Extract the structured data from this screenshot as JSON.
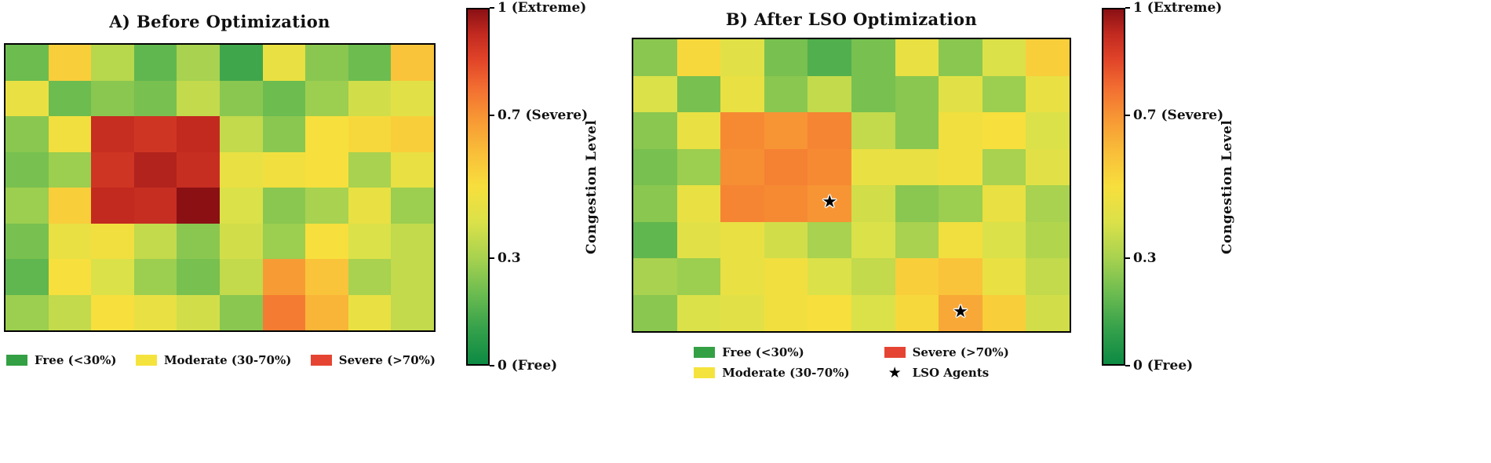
{
  "colorbar": {
    "label": "Congestion Level",
    "range": [
      0,
      1
    ],
    "ticks": [
      {
        "value": 1.0,
        "label": "1 (Extreme)"
      },
      {
        "value": 0.7,
        "label": "0.7 (Severe)"
      },
      {
        "value": 0.3,
        "label": "0.3"
      },
      {
        "value": 0.0,
        "label": "0 (Free)"
      }
    ],
    "gradient_stops": [
      [
        0.0,
        "#0c8a43"
      ],
      [
        0.1,
        "#35a14b"
      ],
      [
        0.2,
        "#6cbc50"
      ],
      [
        0.3,
        "#a8d24f"
      ],
      [
        0.4,
        "#dbe149"
      ],
      [
        0.5,
        "#f7df3d"
      ],
      [
        0.6,
        "#f9bd39"
      ],
      [
        0.7,
        "#f79434"
      ],
      [
        0.78,
        "#f26d31"
      ],
      [
        0.86,
        "#e04328"
      ],
      [
        0.93,
        "#c22a20"
      ],
      [
        1.0,
        "#8a1014"
      ]
    ]
  },
  "chart_data": [
    {
      "type": "heatmap",
      "title": "A) Before Optimization",
      "grid_rows": 8,
      "grid_cols": 10,
      "value_range": [
        0,
        1
      ],
      "values": [
        [
          0.2,
          0.55,
          0.33,
          0.18,
          0.3,
          0.12,
          0.45,
          0.25,
          0.2,
          0.58
        ],
        [
          0.45,
          0.2,
          0.25,
          0.22,
          0.35,
          0.25,
          0.2,
          0.28,
          0.38,
          0.42
        ],
        [
          0.25,
          0.48,
          0.92,
          0.9,
          0.93,
          0.35,
          0.25,
          0.5,
          0.52,
          0.55
        ],
        [
          0.22,
          0.28,
          0.9,
          0.95,
          0.92,
          0.45,
          0.48,
          0.5,
          0.3,
          0.45
        ],
        [
          0.28,
          0.55,
          0.93,
          0.92,
          1.0,
          0.4,
          0.25,
          0.3,
          0.45,
          0.28
        ],
        [
          0.22,
          0.45,
          0.48,
          0.35,
          0.25,
          0.38,
          0.28,
          0.5,
          0.4,
          0.35
        ],
        [
          0.18,
          0.5,
          0.4,
          0.28,
          0.22,
          0.35,
          0.68,
          0.58,
          0.3,
          0.35
        ],
        [
          0.28,
          0.35,
          0.5,
          0.45,
          0.38,
          0.25,
          0.75,
          0.62,
          0.45,
          0.35
        ]
      ],
      "legend_layout": "single-row",
      "legend": [
        {
          "label": "Free (<30%)",
          "marker": "patch",
          "color": "#33a043"
        },
        {
          "label": "Moderate (30-70%)",
          "marker": "patch",
          "color": "#f5e33d"
        },
        {
          "label": "Severe (>70%)",
          "marker": "patch",
          "color": "#e54432"
        }
      ]
    },
    {
      "type": "heatmap",
      "title": "B) After LSO Optimization",
      "grid_rows": 8,
      "grid_cols": 10,
      "value_range": [
        0,
        1
      ],
      "values": [
        [
          0.25,
          0.52,
          0.42,
          0.22,
          0.15,
          0.22,
          0.45,
          0.25,
          0.4,
          0.55
        ],
        [
          0.4,
          0.22,
          0.45,
          0.25,
          0.35,
          0.22,
          0.25,
          0.42,
          0.28,
          0.45
        ],
        [
          0.25,
          0.45,
          0.72,
          0.7,
          0.73,
          0.35,
          0.25,
          0.48,
          0.5,
          0.4
        ],
        [
          0.22,
          0.28,
          0.71,
          0.74,
          0.72,
          0.45,
          0.45,
          0.48,
          0.3,
          0.42
        ],
        [
          0.25,
          0.45,
          0.73,
          0.72,
          0.7,
          0.38,
          0.25,
          0.28,
          0.45,
          0.3
        ],
        [
          0.18,
          0.42,
          0.45,
          0.38,
          0.3,
          0.4,
          0.3,
          0.48,
          0.4,
          0.32
        ],
        [
          0.3,
          0.28,
          0.45,
          0.48,
          0.4,
          0.35,
          0.55,
          0.58,
          0.45,
          0.35
        ],
        [
          0.25,
          0.4,
          0.42,
          0.48,
          0.5,
          0.4,
          0.52,
          0.65,
          0.55,
          0.38
        ]
      ],
      "agents": [
        {
          "row": 4,
          "col": 4
        },
        {
          "row": 7,
          "col": 7
        }
      ],
      "legend_layout": "two-column",
      "legend": [
        {
          "label": "Free (<30%)",
          "marker": "patch",
          "color": "#33a043"
        },
        {
          "label": "Severe (>70%)",
          "marker": "patch",
          "color": "#e54432"
        },
        {
          "label": "Moderate (30-70%)",
          "marker": "patch",
          "color": "#f5e33d"
        },
        {
          "label": "LSO Agents",
          "marker": "star",
          "color": "#000000"
        }
      ]
    }
  ]
}
